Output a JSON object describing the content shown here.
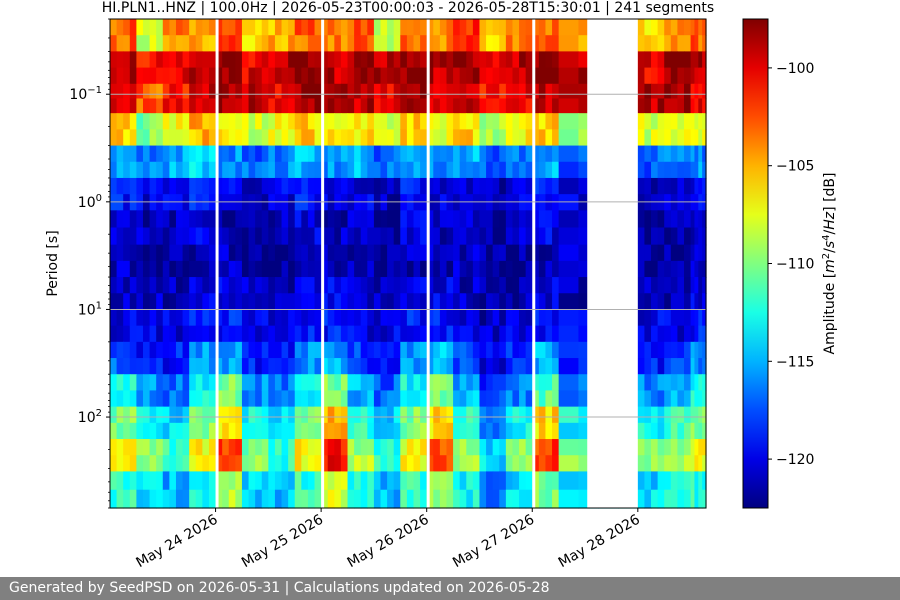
{
  "chart_data": {
    "type": "heatmap",
    "title": "HI.PLN1..HNZ | 100.0Hz | 2026-05-23T00:00:03 - 2026-05-28T15:30:01 | 241 segments",
    "ylabel": "Period [s]",
    "y_scale": "log",
    "y_inverted": true,
    "ylim": [
      0.02,
      700
    ],
    "y_ticks": [
      0.1,
      1,
      10,
      100
    ],
    "y_tick_labels": [
      {
        "base": "10",
        "exp": "−1"
      },
      {
        "base": "10",
        "exp": "0"
      },
      {
        "base": "10",
        "exp": "1"
      },
      {
        "base": "10",
        "exp": "2"
      }
    ],
    "x_type": "date",
    "xlim": [
      "2026-05-23T00:00:03",
      "2026-05-28T15:30:01"
    ],
    "x_ticks": [
      "2026-05-24",
      "2026-05-25",
      "2026-05-26",
      "2026-05-27",
      "2026-05-28"
    ],
    "x_tick_labels": [
      "May 24 2026",
      "May 25 2026",
      "May 26 2026",
      "May 27 2026",
      "May 28 2026"
    ],
    "grid": "horizontal",
    "colorscale": "jet",
    "colorbar": {
      "label_parts": [
        "Amplitude [",
        "m",
        "2",
        "/",
        "s",
        "4",
        "/",
        "Hz",
        "] [dB]"
      ],
      "range": [
        -122.5,
        -97.5
      ],
      "ticks": [
        -100,
        -105,
        -110,
        -115,
        -120
      ],
      "tick_labels": [
        "−100",
        "−105",
        "−110",
        "−115",
        "−120"
      ]
    },
    "data_gaps": [
      [
        "2026-05-24T00:00:00",
        "2026-05-24T00:03:00"
      ],
      [
        "2026-05-25T00:00:00",
        "2026-05-25T00:03:00"
      ],
      [
        "2026-05-26T00:00:00",
        "2026-05-26T00:03:00"
      ],
      [
        "2026-05-27T00:00:00",
        "2026-05-27T00:03:00"
      ],
      [
        "2026-05-27T12:30:00",
        "2026-05-28T00:00:00"
      ]
    ],
    "period_bins": [
      0.02,
      0.04,
      0.08,
      0.15,
      0.3,
      0.6,
      1.2,
      2.5,
      5,
      10,
      20,
      40,
      80,
      160,
      320,
      700
    ],
    "time_bins": [
      "2026-05-23T00",
      "2026-05-23T06",
      "2026-05-23T12",
      "2026-05-23T18",
      "2026-05-24T00",
      "2026-05-24T06",
      "2026-05-24T12",
      "2026-05-24T18",
      "2026-05-25T00",
      "2026-05-25T06",
      "2026-05-25T12",
      "2026-05-25T18",
      "2026-05-26T00",
      "2026-05-26T06",
      "2026-05-26T12",
      "2026-05-26T18",
      "2026-05-27T00",
      "2026-05-27T06",
      "2026-05-28T00",
      "2026-05-28T06",
      "2026-05-28T12"
    ],
    "amplitude_db": [
      [
        -103,
        -108,
        -104,
        -105,
        -102,
        -106,
        -105,
        -103,
        -104,
        -103,
        -108,
        -103,
        -104,
        -102,
        -106,
        -104,
        -103,
        -105,
        -106,
        -104,
        -103
      ],
      [
        -99,
        -101,
        -100,
        -99,
        -98,
        -100,
        -99,
        -98,
        -99,
        -98,
        -99,
        -98,
        -99,
        -98,
        -100,
        -99,
        -98,
        -99,
        -100,
        -98,
        -99
      ],
      [
        -100,
        -103,
        -101,
        -99,
        -98,
        -99,
        -100,
        -98,
        -99,
        -99,
        -100,
        -98,
        -99,
        -99,
        -101,
        -100,
        -99,
        -100,
        -99,
        -98,
        -100
      ],
      [
        -106,
        -110,
        -107,
        -105,
        -106,
        -108,
        -107,
        -106,
        -107,
        -106,
        -108,
        -106,
        -107,
        -106,
        -109,
        -107,
        -106,
        -109,
        -108,
        -107,
        -108
      ],
      [
        -115,
        -116,
        -115,
        -114,
        -116,
        -117,
        -116,
        -115,
        -116,
        -115,
        -117,
        -115,
        -116,
        -115,
        -117,
        -116,
        -115,
        -117,
        -117,
        -116,
        -116
      ],
      [
        -119,
        -120,
        -120,
        -119,
        -120,
        -121,
        -120,
        -119,
        -120,
        -120,
        -121,
        -119,
        -120,
        -120,
        -121,
        -120,
        -119,
        -120,
        -121,
        -120,
        -120
      ],
      [
        -121,
        -121,
        -121,
        -120,
        -121,
        -122,
        -121,
        -120,
        -121,
        -121,
        -122,
        -120,
        -121,
        -121,
        -122,
        -121,
        -120,
        -121,
        -122,
        -121,
        -121
      ],
      [
        -121,
        -122,
        -122,
        -121,
        -121,
        -122,
        -122,
        -121,
        -121,
        -121,
        -122,
        -121,
        -121,
        -121,
        -122,
        -122,
        -121,
        -121,
        -122,
        -122,
        -121
      ],
      [
        -121,
        -121,
        -121,
        -120,
        -120,
        -121,
        -121,
        -120,
        -120,
        -121,
        -121,
        -120,
        -120,
        -121,
        -122,
        -121,
        -120,
        -121,
        -121,
        -121,
        -120
      ],
      [
        -120,
        -120,
        -120,
        -119,
        -119,
        -120,
        -120,
        -119,
        -119,
        -120,
        -120,
        -119,
        -119,
        -120,
        -121,
        -120,
        -119,
        -120,
        -120,
        -120,
        -119
      ],
      [
        -117,
        -119,
        -119,
        -116,
        -115,
        -119,
        -119,
        -116,
        -115,
        -118,
        -119,
        -116,
        -115,
        -118,
        -120,
        -118,
        -115,
        -119,
        -119,
        -118,
        -116
      ],
      [
        -113,
        -116,
        -117,
        -113,
        -110,
        -116,
        -117,
        -113,
        -110,
        -115,
        -117,
        -113,
        -110,
        -115,
        -118,
        -116,
        -111,
        -116,
        -116,
        -115,
        -113
      ],
      [
        -110,
        -113,
        -114,
        -110,
        -106,
        -113,
        -114,
        -110,
        -105,
        -112,
        -114,
        -110,
        -106,
        -112,
        -116,
        -113,
        -106,
        -113,
        -113,
        -112,
        -110
      ],
      [
        -106,
        -110,
        -112,
        -107,
        -102,
        -110,
        -112,
        -107,
        -101,
        -109,
        -112,
        -107,
        -102,
        -109,
        -114,
        -110,
        -102,
        -110,
        -110,
        -109,
        -107
      ],
      [
        -112,
        -114,
        -115,
        -113,
        -109,
        -114,
        -115,
        -112,
        -108,
        -113,
        -115,
        -112,
        -109,
        -113,
        -117,
        -114,
        -110,
        -114,
        -114,
        -113,
        -112
      ]
    ],
    "heatmap_seed": 20260523
  },
  "footer": {
    "text": "Generated by SeedPSD on 2026-05-31 | Calculations updated on 2026-05-28"
  }
}
